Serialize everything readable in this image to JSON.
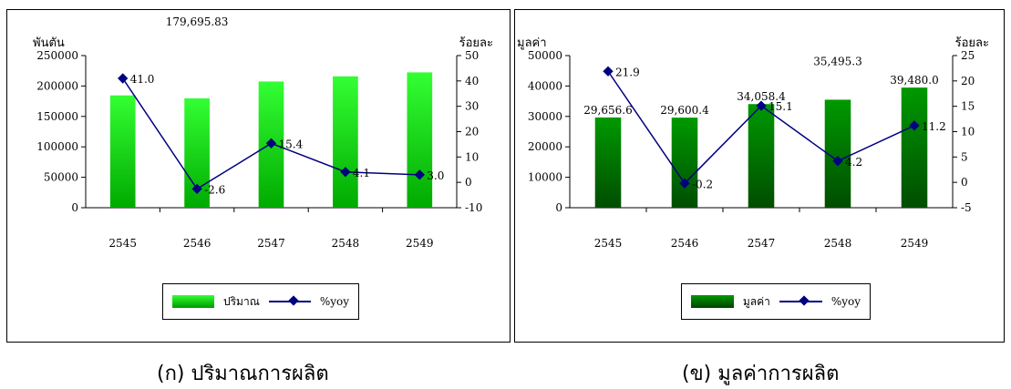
{
  "chart_data": [
    {
      "type": "bar",
      "combo": "bar+line",
      "categories": [
        "2545",
        "2546",
        "2547",
        "2548",
        "2549"
      ],
      "y_left_label": "พันตัน",
      "y_right_label": "ร้อยละ",
      "y_left_ticks": [
        "0",
        "50000",
        "100000",
        "150000",
        "200000",
        "250000"
      ],
      "y_right_ticks": [
        "-10",
        "0",
        "10",
        "20",
        "30",
        "40",
        "50"
      ],
      "ylim_left": [
        0,
        250000
      ],
      "ylim_right": [
        -10,
        50
      ],
      "bar_labels": [
        "184,556.33",
        "179,695.83",
        "207,375.29",
        "215,859.07",
        "222,407.53"
      ],
      "line_labels": [
        "41.0",
        "-2.6",
        "15.4",
        "4.1",
        "3.0"
      ],
      "series": [
        {
          "name": "ปริมาณ",
          "type": "bar",
          "axis": "left",
          "values": [
            184556.33,
            179695.83,
            207375.29,
            215859.07,
            222407.53
          ],
          "color": "#22dd22"
        },
        {
          "name": "%yoy",
          "type": "line",
          "axis": "right",
          "values": [
            41.0,
            -2.6,
            15.4,
            4.1,
            3.0
          ],
          "color": "#000080"
        }
      ],
      "grid": false,
      "legend": "bottom"
    },
    {
      "type": "bar",
      "combo": "bar+line",
      "categories": [
        "2545",
        "2546",
        "2547",
        "2548",
        "2549"
      ],
      "y_left_label": "มูลค่า",
      "y_right_label": "ร้อยละ",
      "y_left_ticks": [
        "0",
        "10000",
        "20000",
        "30000",
        "40000",
        "50000"
      ],
      "y_right_ticks": [
        "-5",
        "0",
        "5",
        "10",
        "15",
        "20",
        "25"
      ],
      "ylim_left": [
        0,
        50000
      ],
      "ylim_right": [
        -5,
        25
      ],
      "bar_labels": [
        "29,656.6",
        "29,600.4",
        "34,058.4",
        "35,495.3",
        "39,480.0"
      ],
      "line_labels": [
        "21.9",
        "-0.2",
        "15.1",
        "4.2",
        "11.2"
      ],
      "series": [
        {
          "name": "มูลค่า",
          "type": "bar",
          "axis": "left",
          "values": [
            29656.6,
            29600.4,
            34058.4,
            35495.3,
            39480.0
          ],
          "color": "#008800"
        },
        {
          "name": "%yoy",
          "type": "line",
          "axis": "right",
          "values": [
            21.9,
            -0.2,
            15.1,
            4.2,
            11.2
          ],
          "color": "#000080"
        }
      ],
      "grid": false,
      "legend": "bottom"
    }
  ],
  "captions": [
    "(ก) ปริมาณการผลิต",
    "(ข) มูลค่าการผลิต"
  ]
}
